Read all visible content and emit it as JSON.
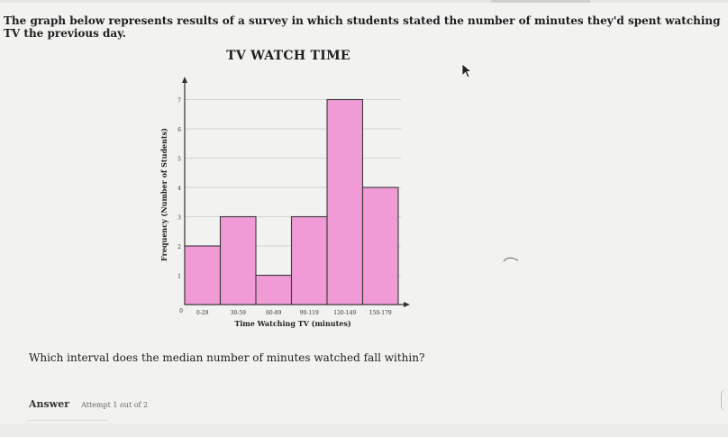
{
  "prompt": "The graph below represents results of a survey in which students stated the number of minutes they'd spent watching TV the previous day.",
  "question": "Which interval does the median number of minutes watched fall within?",
  "answer": {
    "label": "Answer",
    "attempt": "Attempt 1 out of 2"
  },
  "chart_data": {
    "type": "bar",
    "title": "TV WATCH TIME",
    "xlabel": "Time Watching TV (minutes)",
    "ylabel": "Frequency (Number of Students)",
    "categories": [
      "0-29",
      "30-59",
      "60-89",
      "90-119",
      "120-149",
      "150-179"
    ],
    "values": [
      2,
      3,
      1,
      3,
      7,
      4
    ],
    "ylim": [
      0,
      7
    ],
    "yticks": [
      0,
      1,
      2,
      3,
      4,
      5,
      6,
      7
    ],
    "grid": true,
    "legend": "none",
    "bar_color": "#f09ad6",
    "bar_edge": "#3a3a3a"
  }
}
